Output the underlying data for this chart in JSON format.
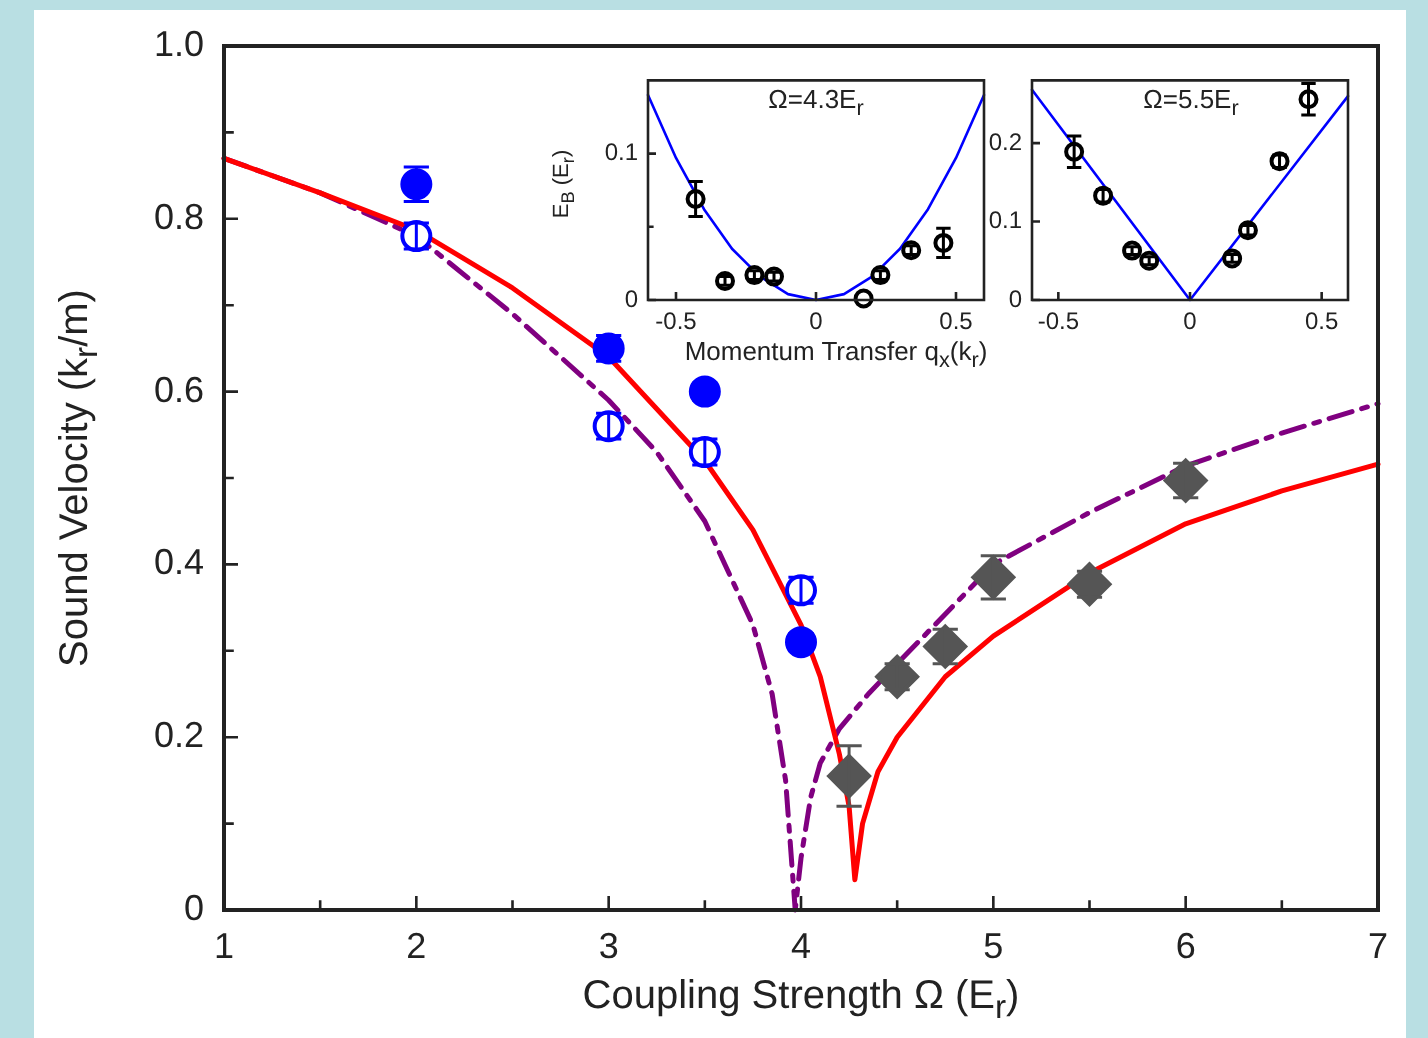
{
  "chart_data": [
    {
      "type": "scatter",
      "xlabel": "Coupling Strength Ω (E$_{r}$)",
      "ylabel": "Sound Velocity (k$_{r}$/m)",
      "xlim": [
        1,
        7
      ],
      "ylim": [
        0,
        1
      ],
      "xticks": [
        1,
        {
          "value": 1.5,
          "label": null
        },
        2,
        {
          "value": 2.5,
          "label": null
        },
        3,
        {
          "value": 3.5,
          "label": null
        },
        4,
        {
          "value": 4.5,
          "label": null
        },
        5,
        {
          "value": 5.5,
          "label": null
        },
        6,
        {
          "value": 6.5,
          "label": null
        },
        7
      ],
      "yticks": [
        0,
        {
          "value": 0.1,
          "label": null
        },
        0.2,
        {
          "value": 0.3,
          "label": null
        },
        0.4,
        {
          "value": 0.5,
          "label": null
        },
        0.6,
        {
          "value": 0.7,
          "label": null
        },
        0.8,
        {
          "value": 0.9,
          "label": null
        },
        {
          "value": 1,
          "label": "1.0"
        }
      ],
      "grid": false,
      "legend": false,
      "series": [
        {
          "type": "line",
          "color": "#ff0000",
          "line_style": "solid",
          "marker": "none",
          "x": [
            1,
            1.5,
            2,
            2.5,
            3,
            3.5,
            3.75,
            4,
            4.1,
            4.2,
            4.25,
            4.28,
            4.32,
            4.4,
            4.5,
            4.75,
            5,
            5.5,
            6,
            6.5,
            7
          ],
          "values": [
            0.87,
            0.83,
            0.787,
            0.72,
            0.64,
            0.52,
            0.44,
            0.33,
            0.27,
            0.18,
            0.12,
            0.035,
            0.1,
            0.16,
            0.2,
            0.27,
            0.317,
            0.39,
            0.447,
            0.485,
            0.516
          ]
        },
        {
          "type": "line",
          "color": "#800080",
          "line_style": "dashdot",
          "marker": "none",
          "x": [
            1,
            1.5,
            2,
            2.5,
            3,
            3.25,
            3.5,
            3.75,
            3.85,
            3.92,
            3.97,
            4.0,
            4.05,
            4.1,
            4.2,
            4.35,
            4.5,
            5,
            5.5,
            6,
            6.5,
            7
          ],
          "values": [
            0.87,
            0.83,
            0.78,
            0.69,
            0.59,
            0.53,
            0.45,
            0.33,
            0.25,
            0.15,
            0.0,
            0.06,
            0.13,
            0.17,
            0.21,
            0.25,
            0.285,
            0.4,
            0.46,
            0.514,
            0.552,
            0.586
          ]
        },
        {
          "color": "#0000ff",
          "marker": "circle",
          "x": [
            2,
            3,
            3.5,
            4
          ],
          "values": [
            0.84,
            0.65,
            0.6,
            0.31
          ],
          "errors": [
            0.02,
            0.015,
            0.01,
            0.01
          ]
        },
        {
          "color": "#0000ff",
          "marker": "open circle",
          "x": [
            2,
            3,
            3.5,
            4
          ],
          "values": [
            0.78,
            0.56,
            0.53,
            0.37
          ],
          "errors": [
            0.015,
            0.015,
            0.015,
            0.015
          ]
        },
        {
          "color": "#555555",
          "marker": "diamond",
          "x": [
            4.25,
            4.5,
            4.75,
            5,
            5.5,
            6
          ],
          "values": [
            0.155,
            0.27,
            0.305,
            0.385,
            0.377,
            0.497
          ],
          "errors": [
            0.035,
            0.015,
            0.02,
            0.025,
            0.015,
            0.02
          ]
        }
      ]
    },
    {
      "type": "scatter",
      "title": "Ω=4.3E$_{r}$",
      "ylabel": "E$_{B}$ (E$_{r}$)",
      "xlim": [
        -0.6,
        0.6
      ],
      "ylim": [
        0,
        0.15
      ],
      "xticks": [
        -0.5,
        0,
        0.5
      ],
      "yticks": [
        0,
        {
          "value": 0.05,
          "label": null
        },
        0.1
      ],
      "grid": false,
      "legend": false,
      "series": [
        {
          "type": "line",
          "color": "#0000ff",
          "line_style": "solid",
          "marker": "none",
          "x": [
            -0.6,
            -0.5,
            -0.4,
            -0.3,
            -0.2,
            -0.1,
            0,
            0.1,
            0.2,
            0.3,
            0.4,
            0.5,
            0.6
          ],
          "values": [
            0.14,
            0.097,
            0.062,
            0.035,
            0.016,
            0.004,
            0,
            0.004,
            0.016,
            0.035,
            0.062,
            0.097,
            0.14
          ]
        },
        {
          "color": "#000000",
          "marker": "open circle",
          "x": [
            -0.43,
            -0.325,
            -0.22,
            -0.15,
            0.17,
            0.23,
            0.34,
            0.455
          ],
          "values": [
            0.069,
            0.013,
            0.017,
            0.016,
            0.001,
            0.017,
            0.034,
            0.039
          ],
          "errors": [
            0.012,
            0.003,
            0.003,
            0.003,
            null,
            0.003,
            0.003,
            0.01
          ]
        }
      ]
    },
    {
      "type": "scatter",
      "title": "Ω=5.5E$_{r}$",
      "xlabel": "Momentum Transfer q$_{x}$(k$_{r}$)",
      "xlim": [
        -0.6,
        0.6
      ],
      "ylim": [
        0,
        0.28
      ],
      "xticks": [
        -0.5,
        0,
        0.5
      ],
      "yticks": [
        0,
        0.1,
        0.2
      ],
      "grid": false,
      "legend": false,
      "series": [
        {
          "type": "line",
          "color": "#0000ff",
          "line_style": "solid",
          "marker": "none",
          "x": [
            -0.6,
            0,
            0.6
          ],
          "values": [
            0.268,
            0,
            0.26
          ]
        },
        {
          "color": "#000000",
          "marker": "open circle",
          "x": [
            -0.44,
            -0.33,
            -0.22,
            -0.155,
            0.16,
            0.22,
            0.34,
            0.45
          ],
          "values": [
            0.189,
            0.133,
            0.063,
            0.05,
            0.053,
            0.089,
            0.177,
            0.256
          ],
          "errors": [
            0.02,
            0.008,
            0.005,
            0.005,
            0.005,
            0.006,
            0.008,
            0.02
          ]
        }
      ]
    }
  ]
}
